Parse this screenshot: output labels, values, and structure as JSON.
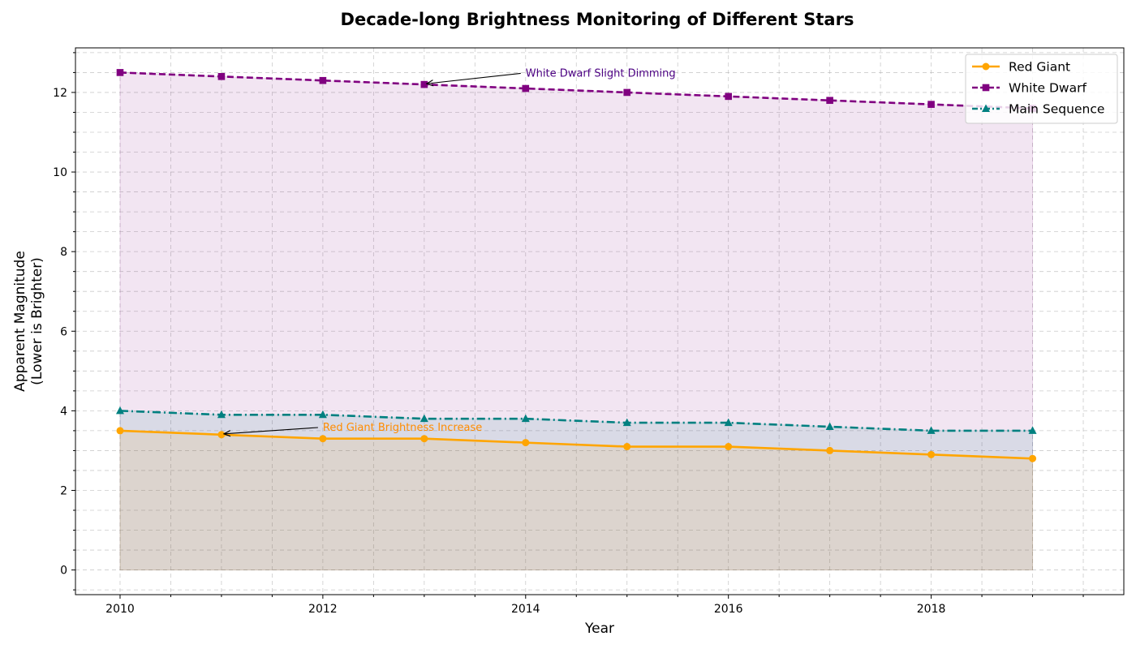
{
  "chart_data": {
    "type": "line",
    "title": "Decade-long Brightness Monitoring of Different Stars",
    "xlabel": "Year",
    "ylabel_line1": "Apparent Magnitude",
    "ylabel_line2": "(Lower is Brighter)",
    "x": [
      2010,
      2011,
      2012,
      2013,
      2014,
      2015,
      2016,
      2017,
      2018,
      2019
    ],
    "xlim": [
      2009.56,
      2019.9
    ],
    "ylim": [
      -0.62,
      13.12
    ],
    "x_ticks": [
      "2010",
      "2012",
      "2014",
      "2016",
      "2018"
    ],
    "y_ticks": [
      "0",
      "2",
      "4",
      "6",
      "8",
      "10",
      "12"
    ],
    "grid": true,
    "legend_position": "top-right",
    "series": [
      {
        "name": "Red Giant",
        "color": "#ffa500",
        "marker": "circle",
        "dash": "solid",
        "values": [
          3.5,
          3.4,
          3.3,
          3.3,
          3.2,
          3.1,
          3.1,
          3.0,
          2.9,
          2.8
        ]
      },
      {
        "name": "White Dwarf",
        "color": "#800080",
        "marker": "square",
        "dash": "dashed",
        "values": [
          12.5,
          12.4,
          12.3,
          12.2,
          12.1,
          12.0,
          11.9,
          11.8,
          11.7,
          11.6
        ]
      },
      {
        "name": "Main Sequence",
        "color": "#008080",
        "marker": "triangle",
        "dash": "dashdot",
        "values": [
          4.0,
          3.9,
          3.9,
          3.8,
          3.8,
          3.7,
          3.7,
          3.6,
          3.5,
          3.5
        ]
      }
    ],
    "annotations": [
      {
        "text": "White Dwarf Slight Dimming",
        "color": "#4b0082",
        "point": [
          2013,
          12.2
        ],
        "text_at": [
          2014,
          12.5
        ]
      },
      {
        "text": "Red Giant Brightness Increase",
        "color": "#ff8c00",
        "point": [
          2011,
          3.4
        ],
        "text_at": [
          2012,
          3.6
        ]
      }
    ]
  }
}
